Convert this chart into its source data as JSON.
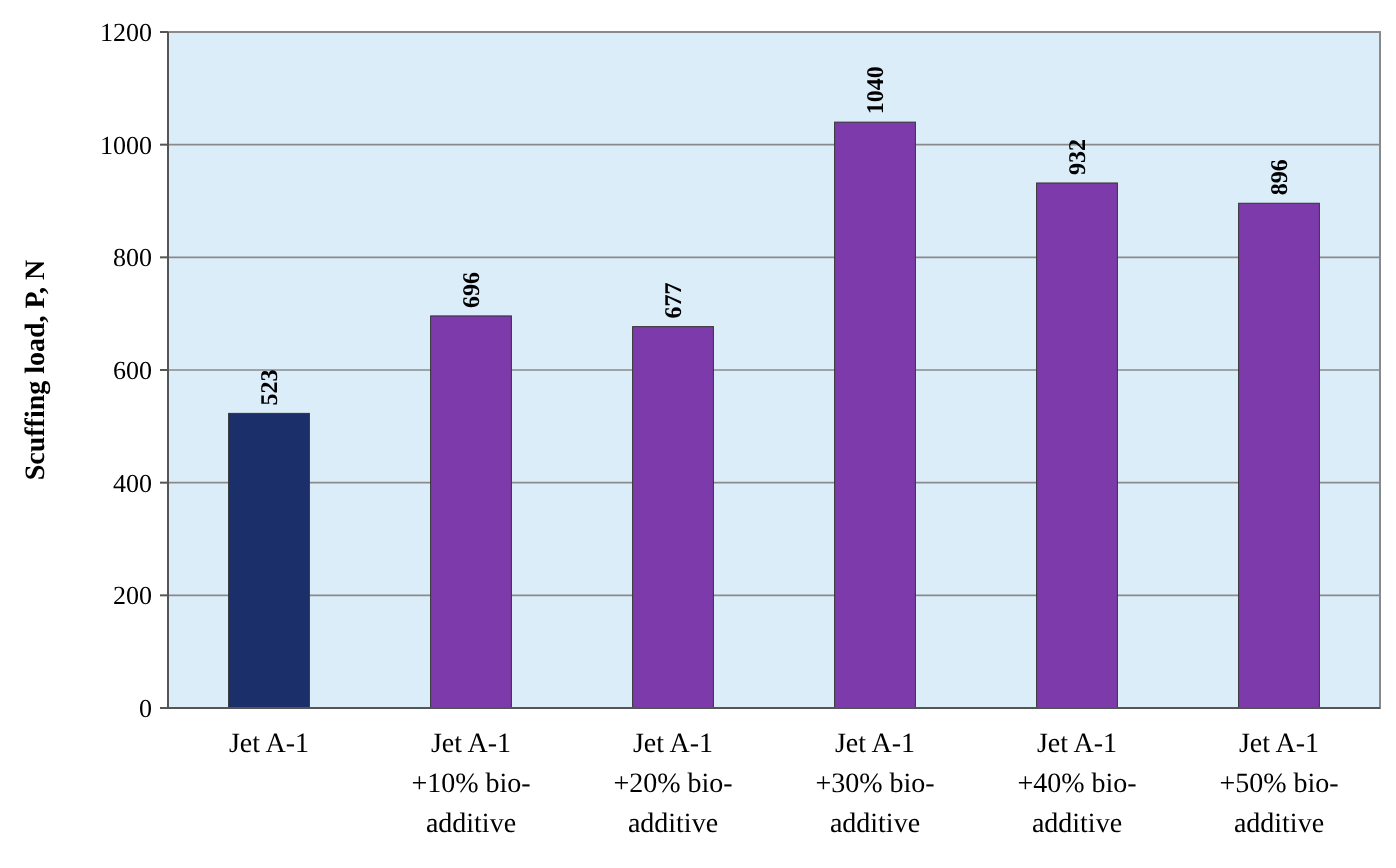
{
  "chart_data": {
    "type": "bar",
    "ylabel": "Scuffing load, P, N",
    "categories": [
      "Jet A-1",
      "Jet A-1\n+10% bio-\nadditive",
      "Jet A-1\n+20% bio-\nadditive",
      "Jet A-1\n+30% bio-\nadditive",
      "Jet A-1\n+40% bio-\nadditive",
      "Jet A-1\n+50% bio-\nadditive"
    ],
    "values": [
      523,
      696,
      677,
      1040,
      932,
      896
    ],
    "colors": [
      "#1b2f6b",
      "#7d3aab",
      "#7d3aab",
      "#7d3aab",
      "#7d3aab",
      "#7d3aab"
    ],
    "ylim": [
      0,
      1200
    ],
    "yticks": [
      0,
      200,
      400,
      600,
      800,
      1000,
      1200
    ],
    "grid": "y",
    "data_labels": true
  }
}
